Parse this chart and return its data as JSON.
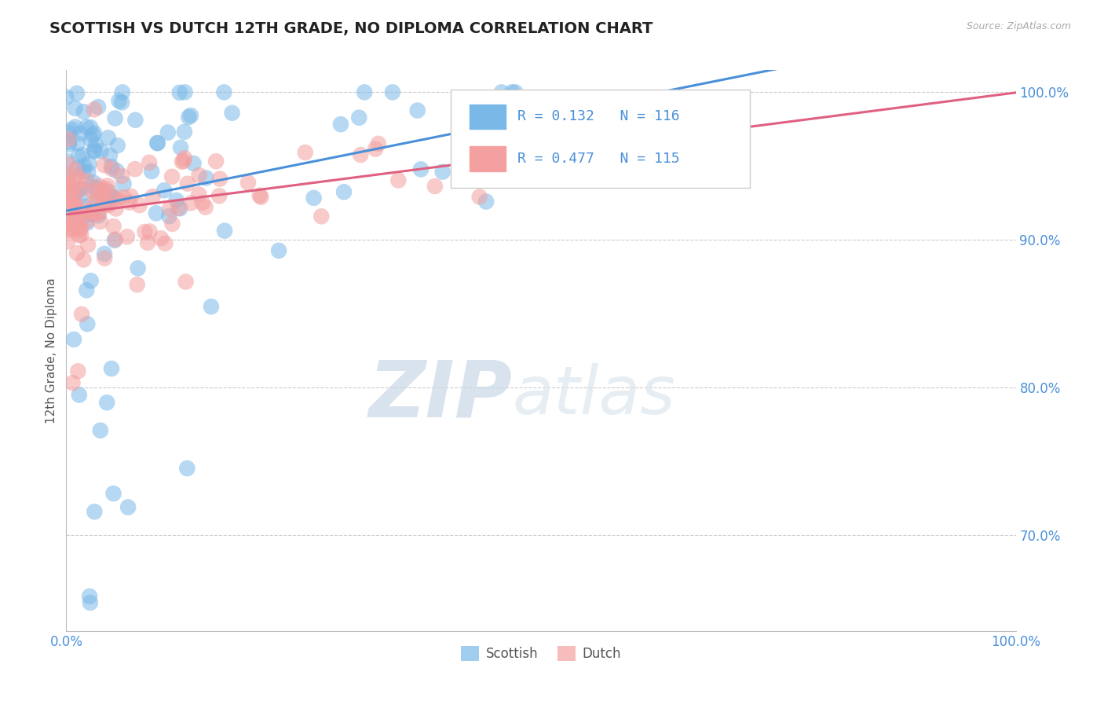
{
  "title": "SCOTTISH VS DUTCH 12TH GRADE, NO DIPLOMA CORRELATION CHART",
  "ylabel": "12th Grade, No Diploma",
  "source": "Source: ZipAtlas.com",
  "scottish_R": 0.132,
  "scottish_N": 116,
  "dutch_R": 0.477,
  "dutch_N": 115,
  "scottish_color": "#7ab8e8",
  "dutch_color": "#f4a0a0",
  "scottish_line_color": "#4a90d9",
  "dutch_line_color": "#e06080",
  "xlim": [
    0.0,
    1.0
  ],
  "ylim": [
    0.635,
    1.015
  ],
  "ytick_vals": [
    0.7,
    0.8,
    0.9,
    1.0
  ],
  "ytick_labels": [
    "70.0%",
    "80.0%",
    "90.0%",
    "100.0%"
  ],
  "background_color": "#ffffff",
  "grid_color": "#cccccc",
  "watermark_zip": "ZIP",
  "watermark_atlas": "atlas",
  "legend_labels": [
    "Scottish",
    "Dutch"
  ]
}
